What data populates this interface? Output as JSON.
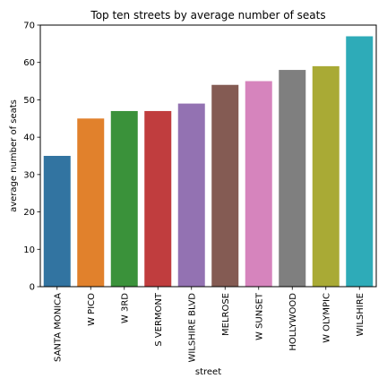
{
  "chart_data": {
    "type": "bar",
    "title": "Top ten streets by average number of seats",
    "xlabel": "street",
    "ylabel": "average number of seats",
    "ylim": [
      0,
      70
    ],
    "yticks": [
      0,
      10,
      20,
      30,
      40,
      50,
      60,
      70
    ],
    "grid": false,
    "categories": [
      "SANTA MONICA",
      "W PICO",
      "W 3RD",
      "S VERMONT",
      "WILSHIRE BLVD",
      "MELROSE",
      "W SUNSET",
      "HOLLYWOOD",
      "W OLYMPIC",
      "WILSHIRE"
    ],
    "values": [
      35,
      45,
      47,
      47,
      49,
      54,
      55,
      58,
      59,
      67
    ],
    "colors": [
      "#3274a1",
      "#e1812c",
      "#3a923a",
      "#c03d3e",
      "#9372b2",
      "#845b53",
      "#d684bd",
      "#7f7f7f",
      "#a9aa35",
      "#2eabb8"
    ]
  }
}
